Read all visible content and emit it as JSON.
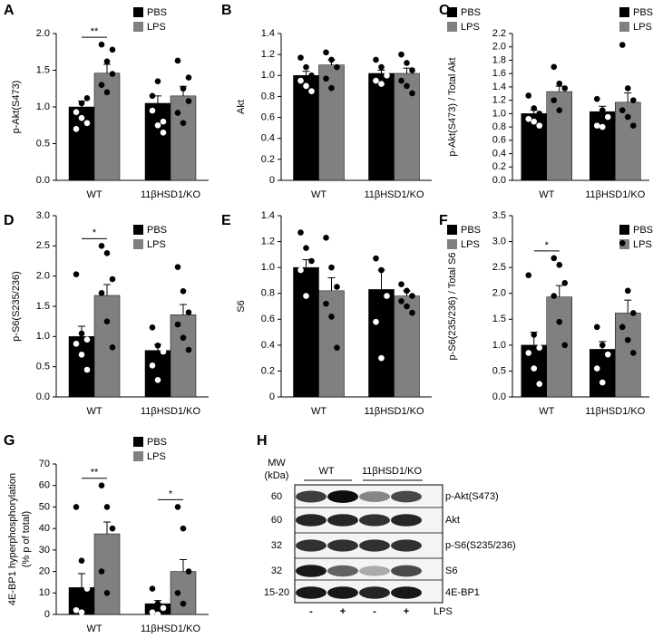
{
  "chart_data": [
    {
      "type": "bar",
      "letter": "A",
      "ylabel": "p-Akt(S473)",
      "categories": [
        "WT",
        "11βHSD1/KO"
      ],
      "legend": "upper right",
      "series": [
        {
          "name": "PBS",
          "color": "#000000",
          "values": [
            1.0,
            1.05
          ],
          "errors": [
            0.08,
            0.1
          ],
          "points": [
            [
              0.93,
              0.85,
              0.78,
              0.7,
              1.05,
              1.12
            ],
            [
              0.95,
              0.75,
              0.65,
              1.15,
              1.35,
              0.8
            ]
          ]
        },
        {
          "name": "LPS",
          "color": "#808080",
          "values": [
            1.46,
            1.15
          ],
          "errors": [
            0.12,
            0.13
          ],
          "points": [
            [
              1.85,
              1.62,
              1.45,
              1.3,
              1.2,
              1.78
            ],
            [
              1.63,
              1.25,
              1.08,
              0.92,
              0.78,
              1.4
            ]
          ]
        }
      ],
      "ylim": [
        0,
        2
      ],
      "yticks": [
        {
          "value": 0,
          "label": "0.0"
        },
        0.5,
        {
          "value": 1,
          "label": "1.0"
        },
        1.5,
        {
          "value": 2,
          "label": "2.0"
        }
      ],
      "significance": [
        "**",
        null
      ]
    },
    {
      "type": "bar",
      "letter": "B",
      "ylabel": "Akt",
      "categories": [
        "WT",
        "11βHSD1/KO"
      ],
      "legend": "upper right",
      "series": [
        {
          "name": "PBS",
          "color": "#000000",
          "values": [
            1.0,
            1.02
          ],
          "errors": [
            0.04,
            0.03
          ],
          "points": [
            [
              1.17,
              1.08,
              1.0,
              0.95,
              0.9,
              0.85
            ],
            [
              1.15,
              1.08,
              1.0,
              0.95,
              0.92
            ]
          ]
        },
        {
          "name": "LPS",
          "color": "#808080",
          "values": [
            1.1,
            1.02
          ],
          "errors": [
            0.05,
            0.05
          ],
          "points": [
            [
              1.22,
              1.15,
              1.08,
              0.97,
              0.88
            ],
            [
              1.2,
              1.12,
              1.05,
              0.95,
              0.9,
              0.83
            ]
          ]
        }
      ],
      "ylim": [
        0,
        1.4
      ],
      "yticks": [
        0,
        0.2,
        0.4,
        0.6,
        0.8,
        {
          "value": 1,
          "label": "1.0"
        },
        1.2,
        1.4
      ],
      "significance": [
        null,
        null
      ]
    },
    {
      "type": "bar",
      "letter": "C",
      "ylabel": "p-Akt(S473) / Total Akt",
      "categories": [
        "WT",
        "11βHSD1/KO"
      ],
      "legend": "upper right",
      "series": [
        {
          "name": "PBS",
          "color": "#000000",
          "values": [
            1.0,
            1.03
          ],
          "errors": [
            0.05,
            0.08
          ],
          "points": [
            [
              1.27,
              1.08,
              1.0,
              0.92,
              0.88,
              0.82
            ],
            [
              1.22,
              1.05,
              0.95,
              0.82,
              0.8
            ]
          ]
        },
        {
          "name": "LPS",
          "color": "#808080",
          "values": [
            1.33,
            1.17
          ],
          "errors": [
            0.08,
            0.14
          ],
          "points": [
            [
              1.7,
              1.45,
              1.38,
              1.2,
              1.05
            ],
            [
              2.03,
              1.38,
              1.2,
              1.05,
              0.95,
              0.82
            ]
          ]
        }
      ],
      "ylim": [
        0,
        2.2
      ],
      "yticks": [
        {
          "value": 0,
          "label": "0.0"
        },
        0.2,
        0.4,
        0.6,
        0.8,
        {
          "value": 1,
          "label": "1.0"
        },
        1.2,
        1.4,
        1.6,
        1.8,
        {
          "value": 2,
          "label": "2.0"
        },
        2.2
      ],
      "significance": [
        null,
        null
      ]
    },
    {
      "type": "bar",
      "letter": "D",
      "ylabel": "p-S6(S235/236)",
      "categories": [
        "WT",
        "11βHSD1/KO"
      ],
      "legend": "upper right",
      "series": [
        {
          "name": "PBS",
          "color": "#000000",
          "values": [
            1.0,
            0.77
          ],
          "errors": [
            0.17,
            0.1
          ],
          "points": [
            [
              2.03,
              1.05,
              0.95,
              0.88,
              0.7,
              0.45
            ],
            [
              1.15,
              0.85,
              0.75,
              0.52,
              0.28
            ]
          ]
        },
        {
          "name": "LPS",
          "color": "#808080",
          "values": [
            1.68,
            1.36
          ],
          "errors": [
            0.18,
            0.17
          ],
          "points": [
            [
              2.5,
              2.38,
              1.95,
              1.72,
              1.25,
              0.82
            ],
            [
              2.15,
              1.75,
              1.4,
              1.2,
              0.98,
              0.78
            ]
          ]
        }
      ],
      "ylim": [
        0,
        3
      ],
      "yticks": [
        {
          "value": 0,
          "label": "0.0"
        },
        0.5,
        {
          "value": 1,
          "label": "1.0"
        },
        1.5,
        {
          "value": 2,
          "label": "2.0"
        },
        2.5,
        {
          "value": 3,
          "label": "3.0"
        }
      ],
      "significance": [
        "*",
        null
      ]
    },
    {
      "type": "bar",
      "letter": "E",
      "ylabel": "S6",
      "categories": [
        "WT",
        "11βHSD1/KO"
      ],
      "legend": "upper right",
      "series": [
        {
          "name": "PBS",
          "color": "#000000",
          "values": [
            1.0,
            0.83
          ],
          "errors": [
            0.06,
            0.15
          ],
          "points": [
            [
              1.27,
              1.15,
              1.05,
              0.98,
              0.78
            ],
            [
              1.07,
              0.98,
              0.78,
              0.58,
              0.3
            ]
          ]
        },
        {
          "name": "LPS",
          "color": "#808080",
          "values": [
            0.82,
            0.78
          ],
          "errors": [
            0.1,
            0.04
          ],
          "points": [
            [
              1.23,
              1.0,
              0.85,
              0.72,
              0.62,
              0.38
            ],
            [
              0.87,
              0.82,
              0.78,
              0.74,
              0.7,
              0.65
            ]
          ]
        }
      ],
      "ylim": [
        0,
        1.4
      ],
      "yticks": [
        0,
        0.2,
        0.4,
        0.6,
        0.8,
        {
          "value": 1,
          "label": "1.0"
        },
        1.2,
        1.4
      ],
      "significance": [
        null,
        null
      ]
    },
    {
      "type": "bar",
      "letter": "F",
      "ylabel": "p-S6(235/236) / Total S6",
      "categories": [
        "WT",
        "11βHSD1/KO"
      ],
      "legend": "upper right",
      "series": [
        {
          "name": "PBS",
          "color": "#000000",
          "values": [
            1.0,
            0.92
          ],
          "errors": [
            0.25,
            0.15
          ],
          "points": [
            [
              2.35,
              1.2,
              0.95,
              0.85,
              0.55,
              0.25
            ],
            [
              1.35,
              1.0,
              0.82,
              0.55,
              0.28
            ]
          ]
        },
        {
          "name": "LPS",
          "color": "#808080",
          "values": [
            1.93,
            1.62
          ],
          "errors": [
            0.22,
            0.25
          ],
          "points": [
            [
              2.68,
              2.55,
              2.2,
              1.95,
              1.45,
              1.0
            ],
            [
              2.97,
              2.05,
              1.62,
              1.35,
              1.1,
              0.85
            ]
          ]
        }
      ],
      "ylim": [
        0,
        3.5
      ],
      "yticks": [
        {
          "value": 0,
          "label": "0.0"
        },
        0.5,
        {
          "value": 1,
          "label": "1.0"
        },
        1.5,
        {
          "value": 2,
          "label": "2.0"
        },
        2.5,
        {
          "value": 3,
          "label": "3.0"
        },
        3.5
      ],
      "significance": [
        "*",
        null
      ]
    },
    {
      "type": "bar",
      "letter": "G",
      "ylabel": [
        "4E-BP1 hyperphosphorylation",
        "(% p of total)"
      ],
      "categories": [
        "WT",
        "11βHSD1/KO"
      ],
      "legend": "upper right",
      "series": [
        {
          "name": "PBS",
          "color": "#000000",
          "values": [
            12.5,
            5
          ],
          "errors": [
            6.5,
            1.5
          ],
          "points": [
            [
              50,
              25,
              12,
              2,
              1
            ],
            [
              12,
              5,
              3,
              1,
              0
            ]
          ]
        },
        {
          "name": "LPS",
          "color": "#808080",
          "values": [
            37.5,
            20
          ],
          "errors": [
            5.5,
            5.5
          ],
          "points": [
            [
              60,
              50,
              40,
              20,
              10
            ],
            [
              50,
              40,
              20,
              10,
              5
            ]
          ]
        }
      ],
      "ylim": [
        0,
        70
      ],
      "yticks": [
        0,
        10,
        20,
        30,
        40,
        50,
        60,
        70
      ],
      "significance": [
        "**",
        "*"
      ]
    }
  ],
  "blot": {
    "letter": "H",
    "mw_header": [
      "MW",
      "(kDa)"
    ],
    "groups": [
      "WT",
      "11βHSD1/KO"
    ],
    "rows": [
      {
        "mw": "60",
        "label": "p-Akt(S473)"
      },
      {
        "mw": "60",
        "label": "Akt"
      },
      {
        "mw": "32",
        "label": "p-S6(S235/236)"
      },
      {
        "mw": "32",
        "label": "S6"
      },
      {
        "mw": "15-20",
        "label": "4E-BP1"
      }
    ],
    "lanes": [
      "-",
      "+",
      "-",
      "+"
    ],
    "treatment": "LPS"
  }
}
